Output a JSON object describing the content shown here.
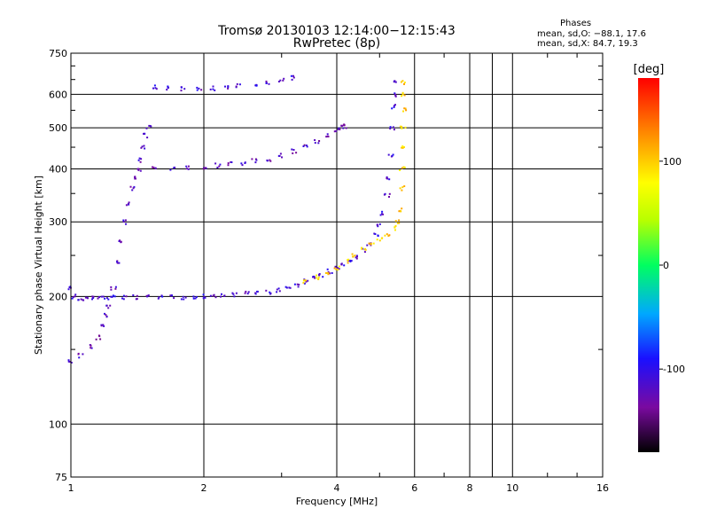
{
  "header": {
    "title": "Tromsø 20130103 12:14:00−12:15:43",
    "subtitle": "RwPretec (8p)",
    "stats_title": "Phases",
    "stats_o": "mean, sd,O: −88.1, 17.6",
    "stats_x": "mean, sd,X:  84.7, 19.3"
  },
  "chart_data": {
    "type": "scatter",
    "title": "Tromsø 20130103 12:14:00−12:15:43",
    "subtitle": "RwPretec (8p)",
    "xlabel": "Frequency [MHz]",
    "ylabel": "Stationary phase Virtual Height [km]",
    "x_scale": "log",
    "y_scale": "log",
    "xlim": [
      1,
      16
    ],
    "ylim": [
      75,
      750
    ],
    "x_ticks": [
      1,
      2,
      4,
      6,
      8,
      10,
      16
    ],
    "y_ticks": [
      75,
      100,
      200,
      300,
      400,
      500,
      600,
      750
    ],
    "grid": true,
    "colorbar": {
      "label": "[deg]",
      "range": [
        -180,
        180
      ],
      "ticks": [
        -100,
        0,
        100
      ],
      "colormap": "rainbow"
    },
    "traces": [
      {
        "name": "",
        "phase": -110,
        "points": [
          [
            1.0,
            210
          ],
          [
            1.02,
            200
          ],
          [
            1.05,
            196
          ],
          [
            1.08,
            198
          ],
          [
            1.12,
            198
          ],
          [
            1.16,
            199
          ],
          [
            1.2,
            199
          ],
          [
            1.25,
            199
          ],
          [
            1.32,
            199
          ],
          [
            1.4,
            199
          ],
          [
            1.5,
            199
          ],
          [
            1.6,
            199
          ],
          [
            1.7,
            199
          ],
          [
            1.8,
            199
          ],
          [
            1.9,
            200
          ],
          [
            2.0,
            200
          ],
          [
            2.1,
            200
          ],
          [
            2.2,
            201
          ],
          [
            2.35,
            202
          ],
          [
            2.5,
            203
          ],
          [
            2.65,
            204
          ],
          [
            2.8,
            205
          ],
          [
            2.95,
            207
          ],
          [
            3.1,
            210
          ],
          [
            3.25,
            213
          ],
          [
            3.4,
            217
          ],
          [
            3.55,
            221
          ],
          [
            3.7,
            225
          ],
          [
            3.85,
            229
          ],
          [
            4.0,
            233
          ],
          [
            4.15,
            237
          ],
          [
            4.3,
            242
          ],
          [
            4.45,
            248
          ],
          [
            4.6,
            256
          ],
          [
            4.75,
            266
          ],
          [
            4.9,
            280
          ],
          [
            5.0,
            295
          ],
          [
            5.1,
            315
          ],
          [
            5.2,
            345
          ],
          [
            5.25,
            380
          ],
          [
            5.3,
            430
          ],
          [
            5.33,
            500
          ],
          [
            5.36,
            560
          ],
          [
            5.4,
            600
          ],
          [
            5.45,
            640
          ]
        ]
      },
      {
        "name": "",
        "phase": 100,
        "points": [
          [
            3.4,
            216
          ],
          [
            3.6,
            222
          ],
          [
            3.8,
            228
          ],
          [
            4.0,
            234
          ],
          [
            4.2,
            242
          ],
          [
            4.4,
            250
          ],
          [
            4.6,
            258
          ],
          [
            4.8,
            265
          ],
          [
            5.0,
            272
          ],
          [
            5.2,
            280
          ],
          [
            5.4,
            290
          ],
          [
            5.5,
            300
          ],
          [
            5.6,
            320
          ],
          [
            5.62,
            360
          ],
          [
            5.63,
            400
          ],
          [
            5.64,
            450
          ],
          [
            5.65,
            500
          ],
          [
            5.66,
            550
          ],
          [
            5.67,
            600
          ],
          [
            5.68,
            640
          ]
        ]
      },
      {
        "name": "",
        "phase": -120,
        "points": [
          [
            1.55,
            405
          ],
          [
            1.7,
            402
          ],
          [
            1.85,
            403
          ],
          [
            2.0,
            405
          ],
          [
            2.15,
            407
          ],
          [
            2.3,
            410
          ],
          [
            2.45,
            413
          ],
          [
            2.6,
            417
          ],
          [
            2.8,
            422
          ],
          [
            3.0,
            430
          ],
          [
            3.2,
            440
          ],
          [
            3.4,
            452
          ],
          [
            3.6,
            465
          ],
          [
            3.8,
            480
          ],
          [
            4.0,
            495
          ],
          [
            4.1,
            500
          ],
          [
            4.2,
            505
          ]
        ]
      },
      {
        "name": "",
        "phase": -110,
        "points": [
          [
            1.55,
            625
          ],
          [
            1.65,
            622
          ],
          [
            1.8,
            618
          ],
          [
            1.95,
            617
          ],
          [
            2.1,
            620
          ],
          [
            2.25,
            625
          ],
          [
            2.4,
            628
          ],
          [
            2.6,
            632
          ],
          [
            2.8,
            640
          ],
          [
            3.0,
            648
          ],
          [
            3.2,
            655
          ]
        ]
      },
      {
        "name": "",
        "phase": -120,
        "points": [
          [
            1.0,
            140
          ],
          [
            1.05,
            145
          ],
          [
            1.1,
            152
          ],
          [
            1.15,
            160
          ],
          [
            1.18,
            170
          ],
          [
            1.2,
            180
          ],
          [
            1.22,
            190
          ],
          [
            1.25,
            210
          ],
          [
            1.28,
            240
          ],
          [
            1.3,
            270
          ],
          [
            1.32,
            300
          ],
          [
            1.35,
            330
          ],
          [
            1.38,
            360
          ],
          [
            1.4,
            380
          ],
          [
            1.42,
            400
          ],
          [
            1.44,
            420
          ],
          [
            1.46,
            450
          ],
          [
            1.48,
            480
          ],
          [
            1.5,
            500
          ]
        ]
      }
    ],
    "stats": {
      "O": {
        "mean": -88.1,
        "sd": 17.6
      },
      "X": {
        "mean": 84.7,
        "sd": 19.3
      }
    }
  }
}
